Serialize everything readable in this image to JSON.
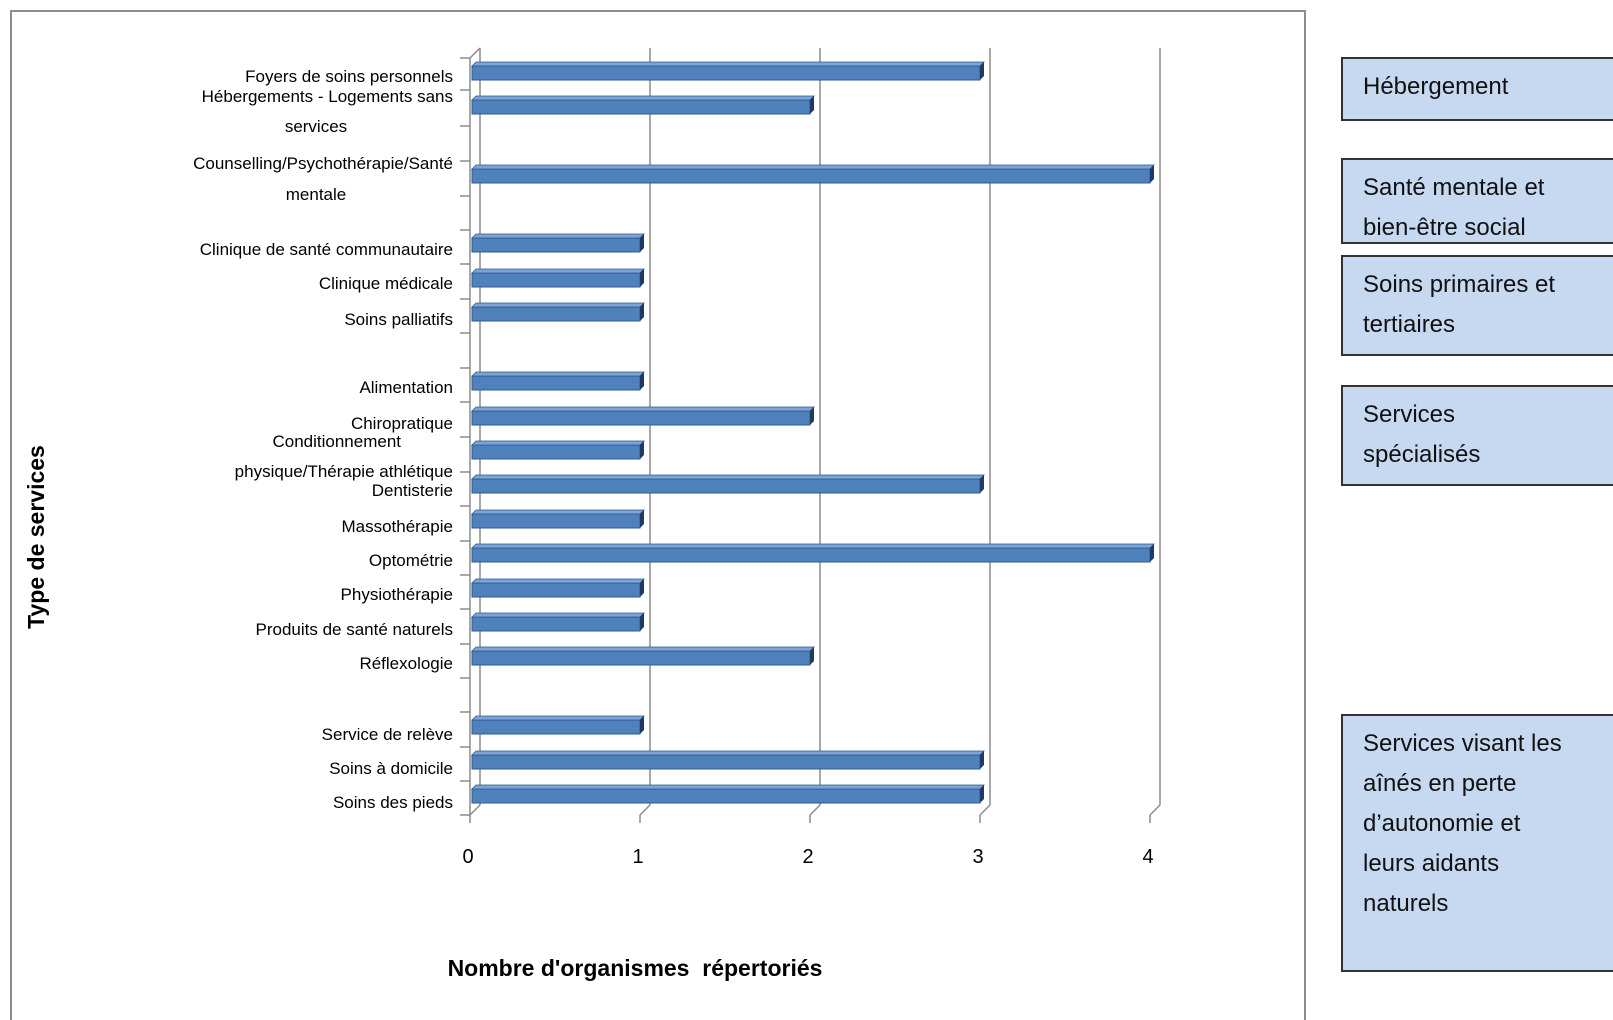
{
  "chart_data": {
    "type": "bar",
    "orientation": "horizontal",
    "xlabel": "Nombre d'organismes  répertoriés",
    "ylabel": "Type de services",
    "xlim": [
      0,
      4
    ],
    "xticks": [
      "0",
      "1",
      "2",
      "3",
      "4"
    ],
    "grid": "vertical",
    "bar_color": "#4f81bd",
    "categories": [
      "Foyers de soins personnels",
      "Hébergements - Logements sans services",
      "Counselling/Psychothérapie/Santé mentale",
      "Clinique de santé communautaire",
      "Clinique médicale",
      "Soins palliatifs",
      "Alimentation",
      "Chiropratique",
      "Conditionnement physique/Thérapie athlétique",
      "Dentisterie",
      "Massothérapie",
      "Optométrie",
      "Physiothérapie",
      "Produits de santé naturels",
      "Réflexologie",
      "Service de relève",
      "Soins à domicile",
      "Soins des pieds"
    ],
    "values": [
      3,
      2,
      4,
      1,
      1,
      1,
      1,
      2,
      1,
      3,
      1,
      4,
      1,
      1,
      2,
      1,
      3,
      3
    ]
  },
  "groups": [
    "Hébergement",
    "Santé mentale et bien-être social",
    "Soins primaires et tertiaires",
    "Services spécialisés",
    "Services visant les aînés en perte d’autonomie et leurs aidants naturels"
  ]
}
